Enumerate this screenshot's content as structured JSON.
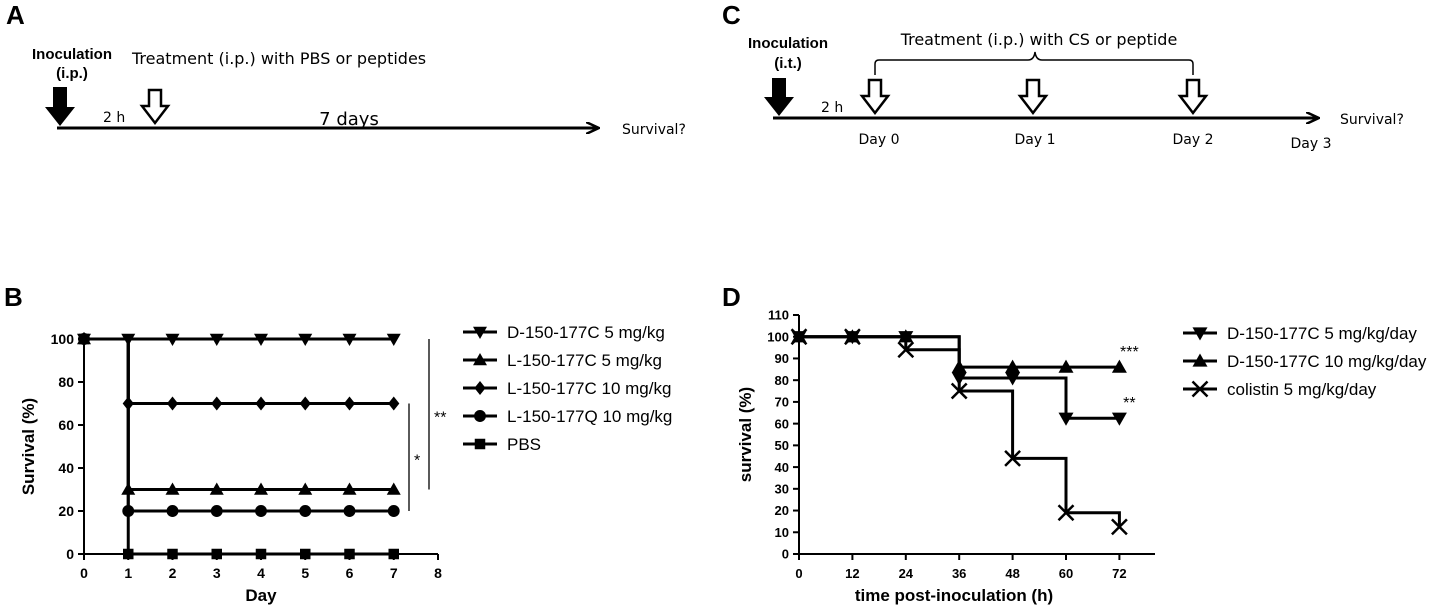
{
  "panel_labels": {
    "a": "A",
    "b": "B",
    "c": "C",
    "d": "D"
  },
  "schematic_a": {
    "inoculation_line1": "Inoculation",
    "inoculation_line2": "(i.p.)",
    "treatment": "Treatment (i.p.) with PBS or peptides",
    "delay": "2 h",
    "duration": "7 days",
    "outcome": "Survival?"
  },
  "schematic_c": {
    "inoculation_line1": "Inoculation",
    "inoculation_line2": "(i.t.)",
    "treatment": "Treatment (i.p.) with CS or peptide",
    "delay": "2 h",
    "days": [
      "Day 0",
      "Day 1",
      "Day 2",
      "Day 3"
    ],
    "outcome": "Survival?"
  },
  "chart_data": [
    {
      "id": "B",
      "type": "line",
      "step": true,
      "xlabel": "Day",
      "ylabel": "Survival (%)",
      "xlim": [
        0,
        8
      ],
      "ylim": [
        0,
        100
      ],
      "xticks": [
        0,
        1,
        2,
        3,
        4,
        5,
        6,
        7,
        8
      ],
      "yticks": [
        0,
        20,
        40,
        60,
        80,
        100
      ],
      "series": [
        {
          "name": "D-150-177C 5 mg/kg",
          "marker": "triangle-down",
          "x": [
            0,
            1,
            2,
            3,
            4,
            5,
            6,
            7
          ],
          "values": [
            100,
            100,
            100,
            100,
            100,
            100,
            100,
            100
          ]
        },
        {
          "name": "L-150-177C 5 mg/kg",
          "marker": "triangle-up",
          "x": [
            0,
            1,
            2,
            3,
            4,
            5,
            6,
            7
          ],
          "values": [
            100,
            30,
            30,
            30,
            30,
            30,
            30,
            30
          ]
        },
        {
          "name": "L-150-177C 10 mg/kg",
          "marker": "diamond",
          "x": [
            0,
            1,
            2,
            3,
            4,
            5,
            6,
            7
          ],
          "values": [
            100,
            70,
            70,
            70,
            70,
            70,
            70,
            70
          ]
        },
        {
          "name": "L-150-177Q 10 mg/kg",
          "marker": "circle",
          "x": [
            0,
            1,
            2,
            3,
            4,
            5,
            6,
            7
          ],
          "values": [
            100,
            20,
            20,
            20,
            20,
            20,
            20,
            20
          ]
        },
        {
          "name": "PBS",
          "marker": "square",
          "x": [
            0,
            1,
            2,
            3,
            4,
            5,
            6,
            7
          ],
          "values": [
            100,
            0,
            0,
            0,
            0,
            0,
            0,
            0
          ]
        }
      ],
      "annotations": [
        {
          "text": "**",
          "from": 100,
          "to": 30
        },
        {
          "text": "*",
          "from": 70,
          "to": 20
        }
      ],
      "legend": "right"
    },
    {
      "id": "D",
      "type": "line",
      "step": true,
      "xlabel": "time post-inoculation (h)",
      "ylabel": "survival (%)",
      "xlim": [
        0,
        80
      ],
      "ylim": [
        0,
        110
      ],
      "xticks": [
        0,
        12,
        24,
        36,
        48,
        60,
        72
      ],
      "yticks": [
        0,
        10,
        20,
        30,
        40,
        50,
        60,
        70,
        80,
        90,
        100,
        110
      ],
      "series": [
        {
          "name": "D-150-177C 5 mg/kg/day",
          "marker": "triangle-down",
          "x": [
            0,
            12,
            24,
            36,
            48,
            60,
            72
          ],
          "values": [
            100,
            100,
            100,
            81,
            81,
            62.5,
            62.5
          ]
        },
        {
          "name": "D-150-177C 10 mg/kg/day",
          "marker": "triangle-up",
          "x": [
            0,
            12,
            24,
            36,
            48,
            60,
            72
          ],
          "values": [
            100,
            100,
            100,
            86,
            86,
            86,
            86
          ]
        },
        {
          "name": "colistin 5 mg/kg/day",
          "marker": "x",
          "x": [
            0,
            12,
            24,
            36,
            48,
            60,
            72
          ],
          "values": [
            100,
            100,
            94,
            75,
            44,
            19,
            12.5
          ]
        }
      ],
      "annotations": [
        {
          "text": "***",
          "series": 1
        },
        {
          "text": "**",
          "series": 0
        }
      ],
      "legend": "right"
    }
  ]
}
